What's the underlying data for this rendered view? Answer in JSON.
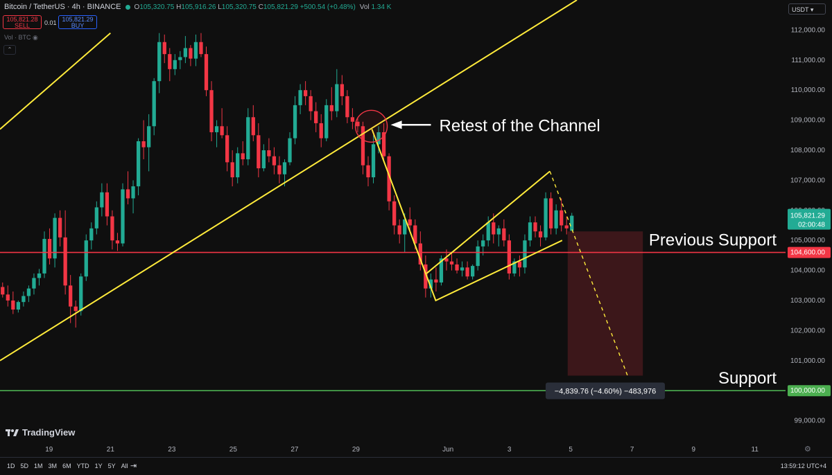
{
  "header": {
    "symbol": "Bitcoin / TetherUS · 4h · BINANCE",
    "o_label": "O",
    "o_value": "105,320.75",
    "h_label": "H",
    "h_value": "105,916.26",
    "l_label": "L",
    "l_value": "105,320.75",
    "c_label": "C",
    "c_value": "105,821.29",
    "change": "+500.54 (+0.48%)",
    "vol_label": "Vol",
    "vol_value": "1.34 K"
  },
  "trade": {
    "sell_price": "105,821.28",
    "sell_label": "SELL",
    "quantity": "0.01",
    "buy_price": "105,821.29",
    "buy_label": "BUY"
  },
  "volume_label": "Vol · BTC",
  "currency_selector": "USDT",
  "brand": "TradingView",
  "range_buttons": [
    "1D",
    "5D",
    "1M",
    "3M",
    "6M",
    "YTD",
    "1Y",
    "5Y",
    "All"
  ],
  "clock": "13:59:12 UTC+4",
  "colors": {
    "up": "#22ab94",
    "down": "#f23645",
    "channel": "#ffeb3b",
    "previous_support": "#f23645",
    "support": "#4caf50",
    "background": "#0f0f0f"
  },
  "icons": [
    "calendar-range-icon",
    "gear-icon",
    "tradingview-logo-icon",
    "eye-icon",
    "chevron-up-icon",
    "chevron-down-icon"
  ],
  "chart_data": {
    "type": "candlestick",
    "price_axis": {
      "ticks": [
        112000,
        111000,
        110000,
        109000,
        108000,
        107000,
        106000,
        105000,
        104000,
        103000,
        102000,
        101000,
        100000,
        99000
      ],
      "tick_labels": [
        "112,000.00",
        "111,000.00",
        "110,000.00",
        "109,000.00",
        "108,000.00",
        "107,000.00",
        "106,000.00",
        "105,000.00",
        "104,000.00",
        "103,000.00",
        "102,000.00",
        "101,000.00",
        "100,000.00",
        "99,000.00"
      ],
      "range": [
        98300,
        113000
      ]
    },
    "time_axis": {
      "tick_labels": [
        "19",
        "21",
        "23",
        "25",
        "27",
        "29",
        "Jun",
        "3",
        "5",
        "7",
        "9",
        "11"
      ],
      "tick_days": [
        19,
        21,
        23,
        25,
        27,
        29,
        32,
        34,
        36,
        38,
        40,
        42
      ],
      "range_days": [
        17.4,
        43.0
      ],
      "day_origin_note_is_hidden": ""
    },
    "candles_ohlc": [
      [
        103450,
        103600,
        103100,
        103200
      ],
      [
        103200,
        103500,
        102800,
        103000
      ],
      [
        103000,
        103300,
        102550,
        102700
      ],
      [
        102700,
        103000,
        102600,
        102950
      ],
      [
        102950,
        103300,
        102800,
        103150
      ],
      [
        103150,
        103500,
        102950,
        103400
      ],
      [
        103400,
        103900,
        103200,
        103750
      ],
      [
        103750,
        104050,
        103500,
        103900
      ],
      [
        103900,
        105300,
        103750,
        105050
      ],
      [
        105050,
        105400,
        104200,
        104400
      ],
      [
        104400,
        105900,
        104100,
        105750
      ],
      [
        105750,
        106000,
        104800,
        105100
      ],
      [
        105100,
        106000,
        103200,
        103500
      ],
      [
        103500,
        103850,
        102250,
        102800
      ],
      [
        102800,
        103000,
        102100,
        102650
      ],
      [
        102650,
        103900,
        102500,
        103800
      ],
      [
        103800,
        105200,
        103650,
        105000
      ],
      [
        105000,
        105600,
        104700,
        105400
      ],
      [
        105400,
        106300,
        105200,
        106100
      ],
      [
        106100,
        106900,
        105800,
        106600
      ],
      [
        106600,
        106900,
        105500,
        105800
      ],
      [
        105800,
        106000,
        104700,
        105000
      ],
      [
        105000,
        105250,
        104650,
        104900
      ],
      [
        104900,
        106900,
        104800,
        106700
      ],
      [
        106700,
        107300,
        106200,
        106400
      ],
      [
        106400,
        107000,
        105900,
        106800
      ],
      [
        106800,
        108400,
        106500,
        108300
      ],
      [
        108300,
        109000,
        107700,
        108100
      ],
      [
        108100,
        109200,
        107300,
        108800
      ],
      [
        108800,
        110400,
        108500,
        110300
      ],
      [
        110300,
        111900,
        109900,
        111600
      ],
      [
        111600,
        111850,
        110900,
        111200
      ],
      [
        111200,
        111400,
        110300,
        110700
      ],
      [
        110700,
        111200,
        110500,
        111000
      ],
      [
        111000,
        111300,
        110700,
        111100
      ],
      [
        111100,
        111800,
        110900,
        111400
      ],
      [
        111400,
        111500,
        110800,
        111050
      ],
      [
        111050,
        111850,
        110800,
        111600
      ],
      [
        111600,
        111900,
        111100,
        111200
      ],
      [
        111200,
        111450,
        109800,
        110000
      ],
      [
        110000,
        110300,
        108300,
        108600
      ],
      [
        108600,
        109000,
        108100,
        108800
      ],
      [
        108800,
        109400,
        108400,
        108500
      ],
      [
        108500,
        108800,
        107300,
        107600
      ],
      [
        107600,
        108000,
        106800,
        107100
      ],
      [
        107100,
        108100,
        106900,
        107900
      ],
      [
        107900,
        108300,
        107500,
        107700
      ],
      [
        107700,
        109400,
        107500,
        109100
      ],
      [
        109100,
        109500,
        108300,
        108500
      ],
      [
        108500,
        108900,
        107100,
        107400
      ],
      [
        107400,
        108200,
        107300,
        108000
      ],
      [
        108000,
        108400,
        107600,
        107800
      ],
      [
        107800,
        108100,
        107200,
        107500
      ],
      [
        107500,
        107800,
        106900,
        107200
      ],
      [
        107200,
        107700,
        106800,
        107600
      ],
      [
        107600,
        108600,
        107500,
        108400
      ],
      [
        108400,
        109800,
        108200,
        109500
      ],
      [
        109500,
        110200,
        109200,
        110000
      ],
      [
        110000,
        110300,
        109500,
        109800
      ],
      [
        109800,
        110000,
        109000,
        109300
      ],
      [
        109300,
        109600,
        108600,
        108900
      ],
      [
        108900,
        109200,
        108100,
        108400
      ],
      [
        108400,
        109700,
        108300,
        109500
      ],
      [
        109500,
        110100,
        109000,
        109300
      ],
      [
        109300,
        110700,
        109100,
        110200
      ],
      [
        110200,
        110500,
        109500,
        109800
      ],
      [
        109800,
        110000,
        108900,
        109100
      ],
      [
        109100,
        109400,
        108700,
        108950
      ],
      [
        108950,
        109100,
        108600,
        108800
      ],
      [
        108800,
        108950,
        107200,
        107500
      ],
      [
        107500,
        107800,
        106800,
        107100
      ],
      [
        107100,
        108500,
        106900,
        108200
      ],
      [
        108200,
        108800,
        107900,
        108600
      ],
      [
        108600,
        108900,
        107600,
        107800
      ],
      [
        107800,
        107900,
        106000,
        106300
      ],
      [
        106300,
        106500,
        105200,
        105500
      ],
      [
        105500,
        105700,
        104900,
        105200
      ],
      [
        105200,
        105900,
        104600,
        105700
      ],
      [
        105700,
        106100,
        105300,
        105500
      ],
      [
        105500,
        105700,
        104700,
        104900
      ],
      [
        104900,
        105300,
        104000,
        104200
      ],
      [
        104200,
        104500,
        103100,
        103400
      ],
      [
        103400,
        103900,
        103100,
        103700
      ],
      [
        103700,
        104100,
        103300,
        103600
      ],
      [
        103600,
        104500,
        103500,
        104400
      ],
      [
        104400,
        104700,
        104000,
        104300
      ],
      [
        104300,
        104600,
        104000,
        104200
      ],
      [
        104200,
        104400,
        103900,
        104000
      ],
      [
        104000,
        104300,
        103800,
        104100
      ],
      [
        104100,
        104300,
        103700,
        103800
      ],
      [
        103800,
        104200,
        103700,
        104150
      ],
      [
        104150,
        105000,
        104000,
        104800
      ],
      [
        104800,
        105200,
        104500,
        105000
      ],
      [
        105000,
        105800,
        104800,
        105600
      ],
      [
        105600,
        105900,
        104900,
        105200
      ],
      [
        105200,
        105500,
        104800,
        105400
      ],
      [
        105400,
        105700,
        104800,
        105000
      ],
      [
        105000,
        105200,
        103700,
        103900
      ],
      [
        103900,
        104400,
        103800,
        104300
      ],
      [
        104300,
        104500,
        103800,
        104100
      ],
      [
        104100,
        105200,
        103900,
        105000
      ],
      [
        105000,
        105800,
        104800,
        105600
      ],
      [
        105600,
        105800,
        105100,
        105300
      ],
      [
        105300,
        105500,
        104800,
        105100
      ],
      [
        105100,
        106600,
        105000,
        106400
      ],
      [
        106400,
        106600,
        105200,
        105400
      ],
      [
        105400,
        106200,
        105200,
        106000
      ],
      [
        106000,
        106400,
        105300,
        105500
      ],
      [
        105500,
        105800,
        105200,
        105400
      ],
      [
        105320.75,
        105916.26,
        105320.75,
        105821.29
      ]
    ],
    "channels": [
      {
        "name": "",
        "points": [
          [
            17.4,
            108700
          ],
          [
            21.0,
            111900
          ]
        ],
        "style": "solid"
      },
      {
        "name": "",
        "points": [
          [
            17.4,
            101000
          ],
          [
            36.2,
            113000
          ]
        ],
        "style": "solid"
      },
      {
        "name": "",
        "points": [
          [
            29.52,
            108700
          ],
          [
            31.6,
            103000
          ],
          [
            35.72,
            105000
          ]
        ],
        "style": "solid"
      },
      {
        "name": "",
        "points": [
          [
            31.3,
            103900
          ],
          [
            35.32,
            107300
          ]
        ],
        "style": "solid"
      },
      {
        "name": "",
        "points": [
          [
            35.32,
            107300
          ],
          [
            37.85,
            100500
          ]
        ],
        "style": "dashed"
      }
    ],
    "horizontal_levels": [
      {
        "value": 104600,
        "price_label": "104,600.00",
        "text": "Previous Support",
        "color": "#f23645"
      },
      {
        "value": 100000,
        "price_label": "100,000.00",
        "text": "Support",
        "color": "#4caf50"
      }
    ],
    "current_price": {
      "value": 105821.29,
      "price_label": "105,821.29",
      "countdown": "02:00:48"
    },
    "annotation": {
      "text": "Retest of the Channel",
      "at_day": 29.5,
      "at_price": 108800
    },
    "measure": {
      "from_day": 35.9,
      "to_day": 38.35,
      "top_price": 105300,
      "bottom_price": 100500,
      "label": "−4,839.76 (−4.60%) −483,976"
    }
  }
}
